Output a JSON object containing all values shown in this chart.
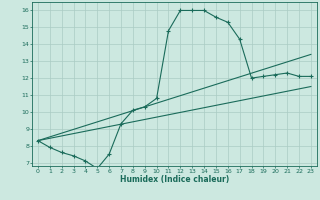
{
  "xlabel": "Humidex (Indice chaleur)",
  "bg_color": "#cce8e0",
  "line_color": "#1a6b5a",
  "grid_color": "#aaccc4",
  "xlim": [
    -0.5,
    23.5
  ],
  "ylim": [
    6.8,
    16.5
  ],
  "xticks": [
    0,
    1,
    2,
    3,
    4,
    5,
    6,
    7,
    8,
    9,
    10,
    11,
    12,
    13,
    14,
    15,
    16,
    17,
    18,
    19,
    20,
    21,
    22,
    23
  ],
  "yticks": [
    7,
    8,
    9,
    10,
    11,
    12,
    13,
    14,
    15,
    16
  ],
  "line1_x": [
    0,
    1,
    2,
    3,
    4,
    5,
    6,
    7,
    8,
    9,
    10,
    11,
    12,
    13,
    14,
    15,
    16,
    17,
    18,
    19,
    20,
    21,
    22,
    23
  ],
  "line1_y": [
    8.3,
    7.9,
    7.6,
    7.4,
    7.1,
    6.65,
    7.5,
    9.3,
    10.1,
    10.3,
    10.8,
    14.8,
    16.0,
    16.0,
    16.0,
    15.6,
    15.3,
    14.3,
    12.0,
    12.1,
    12.2,
    12.3,
    12.1,
    12.1
  ],
  "line2_x": [
    0,
    23
  ],
  "line2_y": [
    8.3,
    13.4
  ],
  "line3_x": [
    0,
    23
  ],
  "line3_y": [
    8.3,
    11.5
  ]
}
